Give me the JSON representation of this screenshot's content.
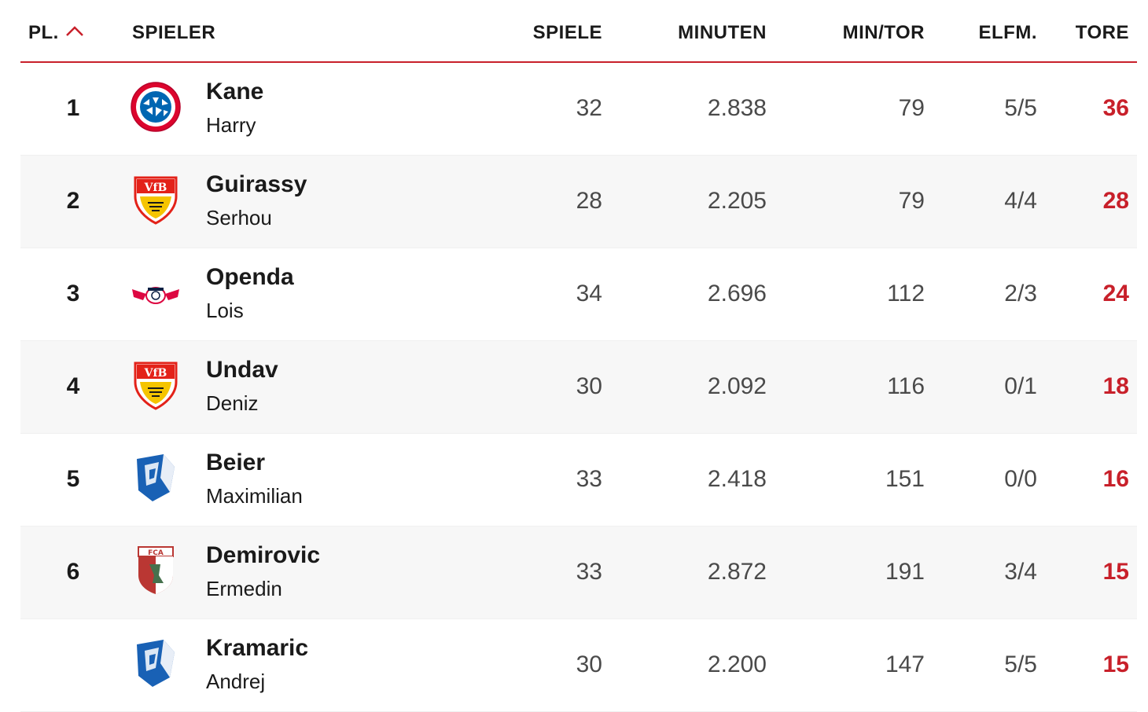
{
  "header": {
    "rank": "PL.",
    "player": "SPIELER",
    "games": "SPIELE",
    "minutes": "MINUTEN",
    "min_per_goal": "MIN/TOR",
    "penalties": "ELFM.",
    "goals": "TORE",
    "sort_icon": "chevron-up-icon"
  },
  "colors": {
    "accent": "#c8202a",
    "text": "#1a1a1a",
    "muted_number": "#4a4a4a",
    "row_alt": "#f7f7f7"
  },
  "rows": [
    {
      "rank": "1",
      "club_icon": "bayern-crest-icon",
      "last": "Kane",
      "first": "Harry",
      "games": "32",
      "minutes": "2.838",
      "min_per_goal": "79",
      "penalties": "5/5",
      "goals": "36"
    },
    {
      "rank": "2",
      "club_icon": "stuttgart-crest-icon",
      "last": "Guirassy",
      "first": "Serhou",
      "games": "28",
      "minutes": "2.205",
      "min_per_goal": "79",
      "penalties": "4/4",
      "goals": "28"
    },
    {
      "rank": "3",
      "club_icon": "leipzig-crest-icon",
      "last": "Openda",
      "first": "Lois",
      "games": "34",
      "minutes": "2.696",
      "min_per_goal": "112",
      "penalties": "2/3",
      "goals": "24"
    },
    {
      "rank": "4",
      "club_icon": "stuttgart-crest-icon",
      "last": "Undav",
      "first": "Deniz",
      "games": "30",
      "minutes": "2.092",
      "min_per_goal": "116",
      "penalties": "0/1",
      "goals": "18"
    },
    {
      "rank": "5",
      "club_icon": "hoffenheim-crest-icon",
      "last": "Beier",
      "first": "Maximilian",
      "games": "33",
      "minutes": "2.418",
      "min_per_goal": "151",
      "penalties": "0/0",
      "goals": "16"
    },
    {
      "rank": "6",
      "club_icon": "augsburg-crest-icon",
      "last": "Demirovic",
      "first": "Ermedin",
      "games": "33",
      "minutes": "2.872",
      "min_per_goal": "191",
      "penalties": "3/4",
      "goals": "15"
    },
    {
      "rank": "",
      "club_icon": "hoffenheim-crest-icon",
      "last": "Kramaric",
      "first": "Andrej",
      "games": "30",
      "minutes": "2.200",
      "min_per_goal": "147",
      "penalties": "5/5",
      "goals": "15"
    }
  ]
}
